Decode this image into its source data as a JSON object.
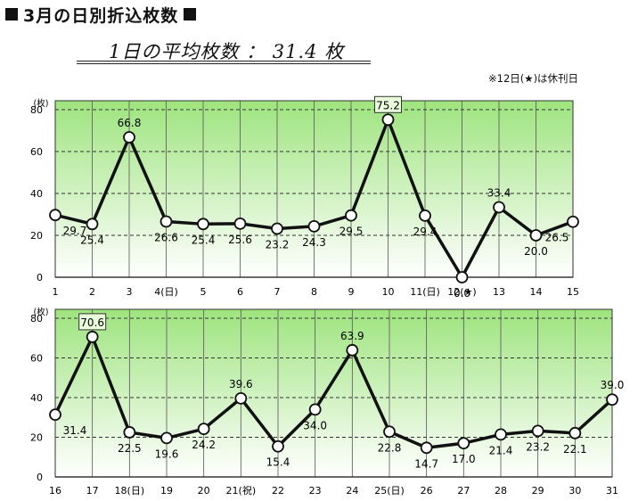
{
  "header": {
    "title": "3月の日別折込枚数"
  },
  "average": {
    "label": "1日の平均枚数 ： 31.4 枚"
  },
  "note": "※12日(★)は休刊日",
  "chart_data": [
    {
      "type": "line",
      "ylabel": "(枚)",
      "ylim": [
        0,
        80
      ],
      "yticks": [
        0,
        20,
        40,
        60,
        80
      ],
      "categories": [
        "1",
        "2",
        "3",
        "4(日)",
        "5",
        "6",
        "7",
        "8",
        "9",
        "10",
        "11(日)",
        "12(★)",
        "13",
        "14",
        "15"
      ],
      "series": [
        {
          "values": [
            29.7,
            25.4,
            66.8,
            26.6,
            25.4,
            25.6,
            23.2,
            24.3,
            29.5,
            75.2,
            29.4,
            0.0,
            33.4,
            20.0,
            26.5
          ]
        }
      ],
      "value_labels": [
        "29.7",
        "25.4",
        "66.8",
        "26.6",
        "25.4",
        "25.6",
        "23.2",
        "24.3",
        "29.5",
        "75.2",
        "29.4",
        "0.0",
        "33.4",
        "20.0",
        "26.5"
      ],
      "boxed_index": 9,
      "grid": true,
      "fill_color_top": "#9ee47e",
      "fill_color_bottom": "#ffffff"
    },
    {
      "type": "line",
      "ylabel": "(枚)",
      "ylim": [
        0,
        80
      ],
      "yticks": [
        0,
        20,
        40,
        60,
        80
      ],
      "categories": [
        "16",
        "17",
        "18(日)",
        "19",
        "20",
        "21(祝)",
        "22",
        "23",
        "24",
        "25(日)",
        "26",
        "27",
        "28",
        "29",
        "30",
        "31"
      ],
      "series": [
        {
          "values": [
            31.4,
            70.6,
            22.5,
            19.6,
            24.2,
            39.6,
            15.4,
            34.0,
            63.9,
            22.8,
            14.7,
            17.0,
            21.4,
            23.2,
            22.1,
            39.0
          ]
        }
      ],
      "value_labels": [
        "31.4",
        "70.6",
        "22.5",
        "19.6",
        "24.2",
        "39.6",
        "15.4",
        "34.0",
        "63.9",
        "22.8",
        "14.7",
        "17.0",
        "21.4",
        "23.2",
        "22.1",
        "39.0"
      ],
      "boxed_index": 1,
      "grid": true,
      "fill_color_top": "#9ee47e",
      "fill_color_bottom": "#ffffff"
    }
  ]
}
